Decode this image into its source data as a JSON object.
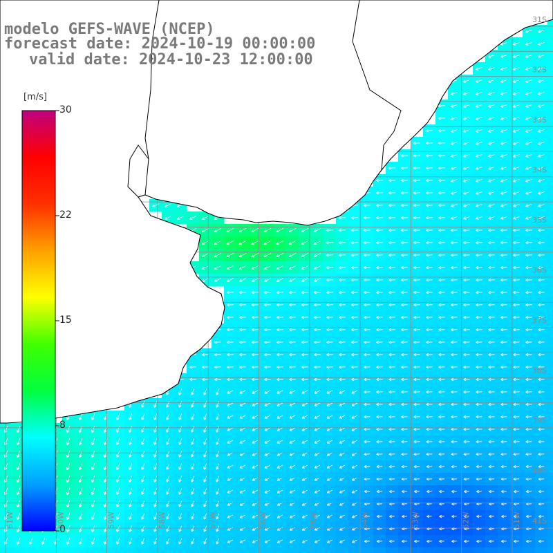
{
  "title": {
    "line1": "modelo GEFS-WAVE (NCEP)",
    "line2": "forecast date: 2024-10-19 00:00:00",
    "line3": "valid date: 2024-10-23 12:00:00"
  },
  "colorbar": {
    "unit": "[m/s]",
    "ticks": [
      "30",
      "22",
      "15",
      "8",
      "0"
    ],
    "range": [
      0,
      30
    ],
    "colors": [
      "#0000ff",
      "#00a0ff",
      "#00ffff",
      "#00ff40",
      "#40ff00",
      "#ffff00",
      "#ffa000",
      "#ff3000",
      "#ff0000",
      "#c00080"
    ]
  },
  "grid": {
    "lat_labels": [
      "31S",
      "32S",
      "33S",
      "34S",
      "35S",
      "36S",
      "37S",
      "38S",
      "39S",
      "40S",
      "41S"
    ],
    "lon_labels": [
      "61W",
      "60W",
      "59W",
      "58W",
      "57W",
      "56W",
      "55W",
      "54W",
      "53W",
      "52W",
      "51W"
    ]
  },
  "field": {
    "quantity": "wind speed",
    "wind_from": "east",
    "palette": {
      "land": "#ffffff",
      "coast": "#000000",
      "grid": "#8a8a8a",
      "arrow": "#ffffff"
    }
  }
}
